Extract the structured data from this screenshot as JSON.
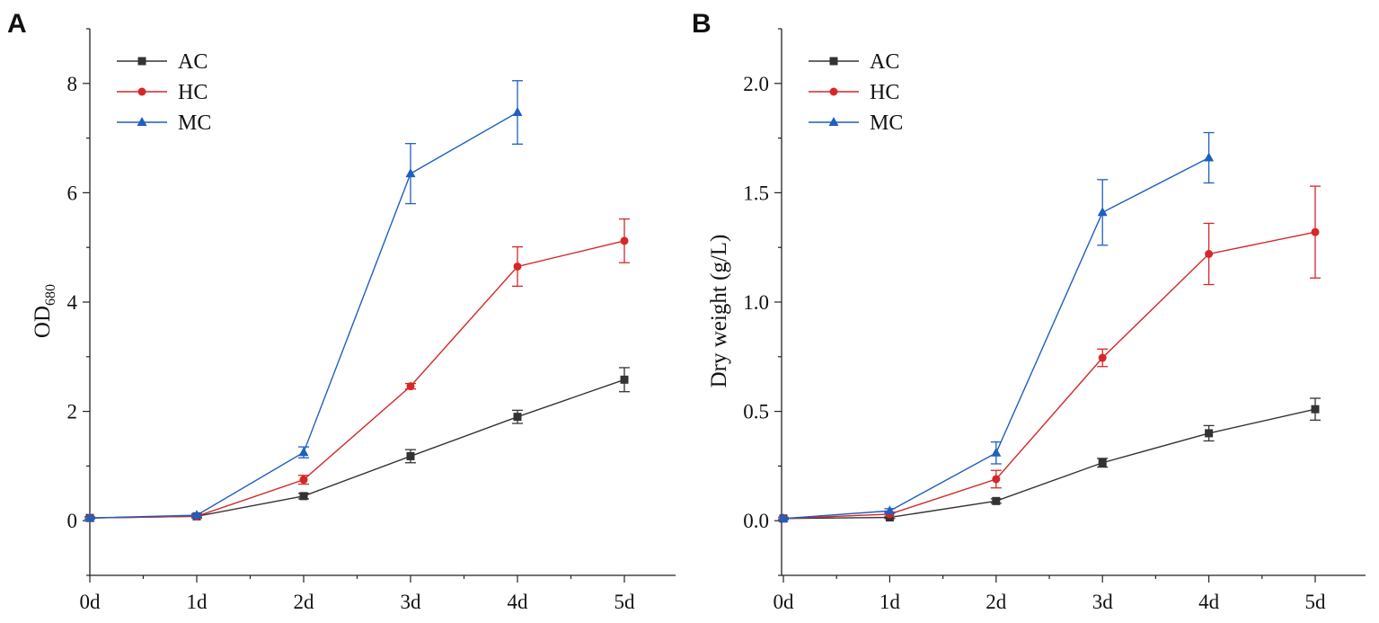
{
  "chart_data": [
    {
      "type": "line",
      "panel_label": "A",
      "ylabel": "OD",
      "ylabel_subscript": "680",
      "xlabel": "",
      "categories": [
        "0d",
        "1d",
        "2d",
        "3d",
        "4d",
        "5d"
      ],
      "ylim": [
        -1,
        9
      ],
      "yticks": [
        0,
        2,
        4,
        6,
        8
      ],
      "legend_position": "top-left",
      "series": [
        {
          "name": "AC",
          "color": "#333333",
          "marker": "square",
          "values": [
            0.05,
            0.08,
            0.45,
            1.18,
            1.9,
            2.58
          ],
          "errors": [
            0.02,
            0.03,
            0.05,
            0.12,
            0.12,
            0.22
          ]
        },
        {
          "name": "HC",
          "color": "#d62728",
          "marker": "circle",
          "values": [
            0.05,
            0.08,
            0.75,
            2.46,
            4.65,
            5.12
          ],
          "errors": [
            0.02,
            0.03,
            0.08,
            0.05,
            0.36,
            0.4
          ]
        },
        {
          "name": "MC",
          "color": "#1f5fbf",
          "marker": "triangle",
          "values": [
            0.05,
            0.1,
            1.25,
            6.35,
            7.47,
            null
          ],
          "errors": [
            0.02,
            0.03,
            0.1,
            0.55,
            0.58,
            null
          ]
        }
      ]
    },
    {
      "type": "line",
      "panel_label": "B",
      "ylabel": "Dry weight (g/L)",
      "ylabel_subscript": "",
      "xlabel": "",
      "categories": [
        "0d",
        "1d",
        "2d",
        "3d",
        "4d",
        "5d"
      ],
      "ylim": [
        -0.25,
        2.25
      ],
      "yticks": [
        0.0,
        0.5,
        1.0,
        1.5,
        2.0
      ],
      "ytick_labels": [
        "0.0",
        "0.5",
        "1.0",
        "1.5",
        "2.0"
      ],
      "legend_position": "top-left",
      "series": [
        {
          "name": "AC",
          "color": "#333333",
          "marker": "square",
          "values": [
            0.01,
            0.015,
            0.09,
            0.265,
            0.4,
            0.51
          ],
          "errors": [
            0.005,
            0.005,
            0.01,
            0.02,
            0.035,
            0.05
          ]
        },
        {
          "name": "HC",
          "color": "#d62728",
          "marker": "circle",
          "values": [
            0.01,
            0.03,
            0.19,
            0.745,
            1.22,
            1.32
          ],
          "errors": [
            0.005,
            0.01,
            0.04,
            0.04,
            0.14,
            0.21
          ]
        },
        {
          "name": "MC",
          "color": "#1f5fbf",
          "marker": "triangle",
          "values": [
            0.01,
            0.045,
            0.31,
            1.41,
            1.66,
            null
          ],
          "errors": [
            0.005,
            0.01,
            0.05,
            0.15,
            0.115,
            null
          ]
        }
      ]
    }
  ]
}
